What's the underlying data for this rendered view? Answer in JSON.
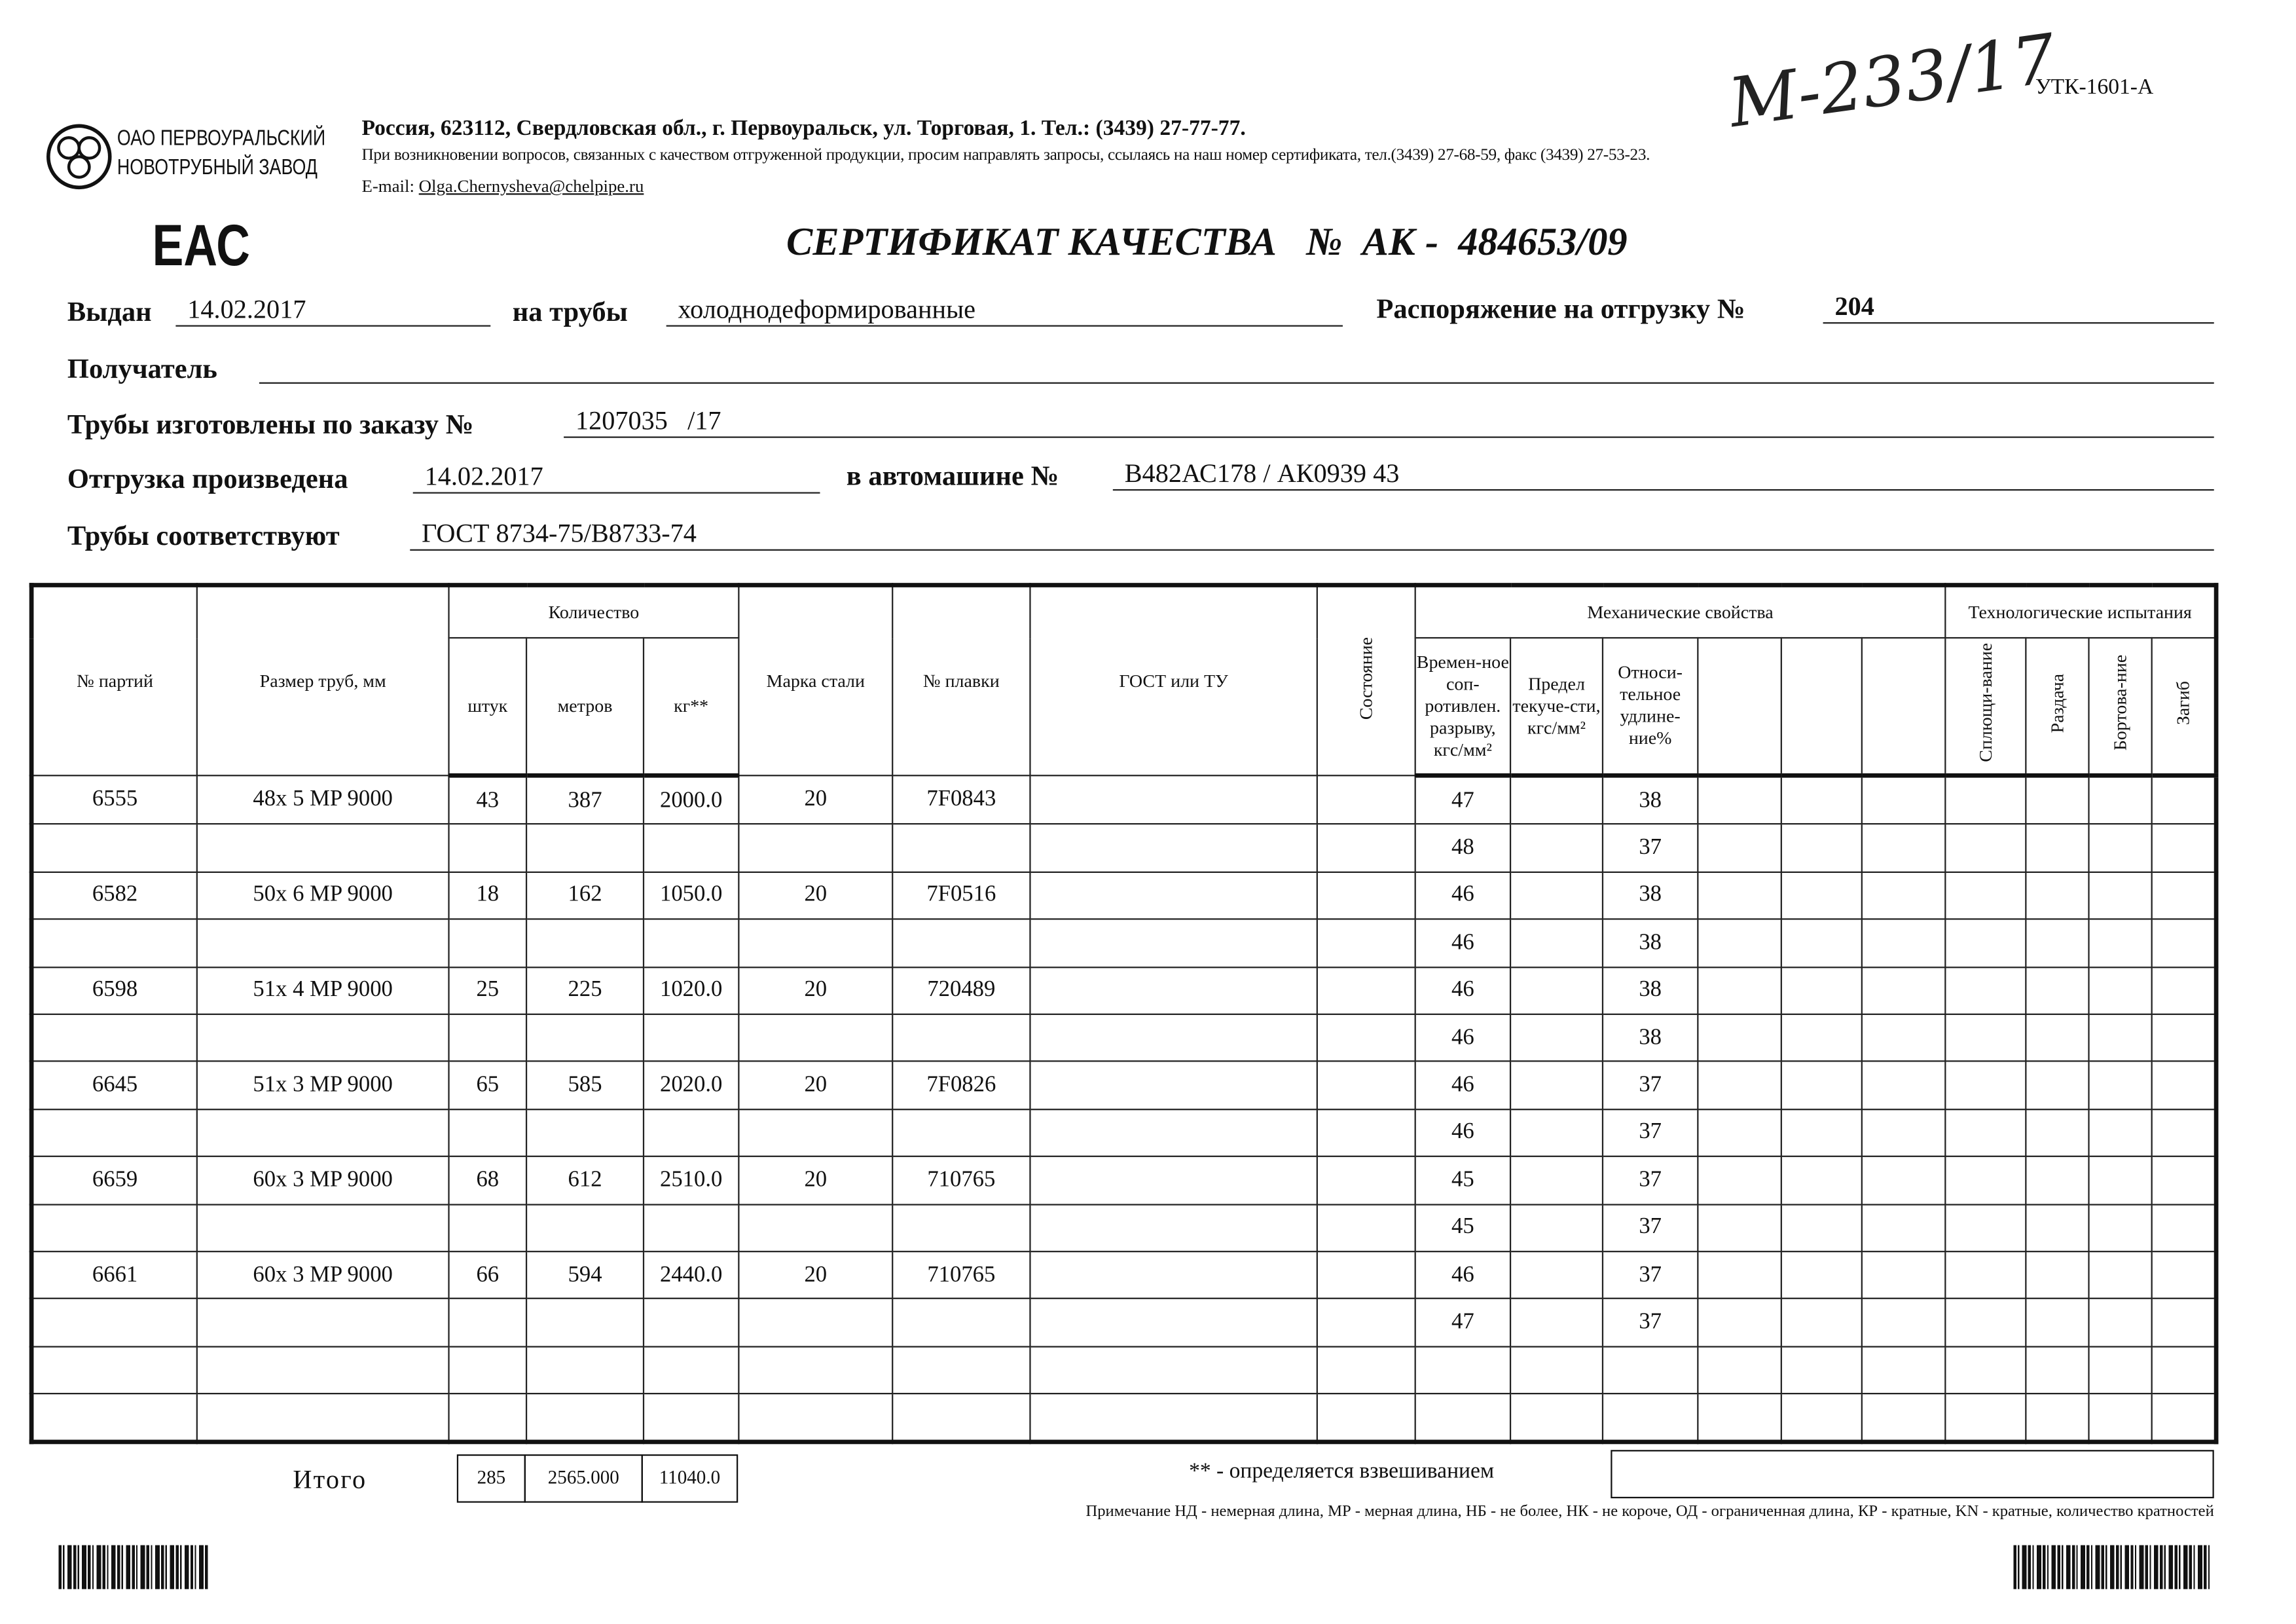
{
  "header": {
    "company_line1": "ОАО ПЕРВОУРАЛЬСКИЙ",
    "company_line2": "НОВОТРУБНЫЙ ЗАВОД",
    "address": "Россия, 623112, Свердловская обл., г. Первоуральск, ул. Торговая, 1. Тел.: (3439) 27-77-77.",
    "contact_note": "При возникновении вопросов, связанных с качеством отгруженной продукции, просим направлять запросы, ссылаясь на наш номер сертификата, тел.(3439) 27-68-59, факс (3439) 27-53-23.",
    "email_label": "E-mail:",
    "email": "Olga.Chernysheva@chelpipe.ru",
    "handwritten_number": "М-233/17",
    "form_code": "УТК-1601-А",
    "eac_mark": "ЕАС"
  },
  "title": "СЕРТИФИКАТ КАЧЕСТВА   №  АК -  484653/09",
  "fields": {
    "issued_label": "Выдан",
    "issued": "14.02.2017",
    "pipes_label": "на трубы",
    "pipes": "холоднодеформированные",
    "order_dispatch_label": "Распоряжение на отгрузку №",
    "order_dispatch": "204",
    "recipient_label": "Получатель",
    "recipient": "",
    "made_by_order_label": "Трубы изготовлены по заказу №",
    "made_by_order": "1207035   /17",
    "shipped_label": "Отгрузка произведена",
    "shipped": "14.02.2017",
    "vehicle_label": "в автомашине №",
    "vehicle": "В482АС178 / АК0939 43",
    "conform_label": "Трубы соответствуют",
    "conform": "ГОСТ 8734-75/В8733-74"
  },
  "table": {
    "headers": {
      "batch": "№ партий",
      "size": "Размер труб, мм",
      "quantity": "Количество",
      "pcs": "штук",
      "meters": "метров",
      "kg": "кг**",
      "steel": "Марка стали",
      "heat": "№ плавки",
      "gost": "ГОСТ или ТУ",
      "condition": "Состояние",
      "mech": "Механические свойства",
      "tensile": "Времен-ное соп-ротивлен. разрыву, кгс/мм²",
      "yield": "Предел текуче-сти, кгс/мм²",
      "elong": "Относи-тельное удлине-ние%",
      "tech": "Технологические испытания",
      "flatten": "Сплющи-вание",
      "expand": "Раздача",
      "flange": "Бортова-ние",
      "bend": "Загиб"
    },
    "rows": [
      {
        "batch": "6555",
        "size": "48x 5 MP 9000",
        "pcs": "43",
        "meters": "387",
        "kg": "2000.0",
        "steel": "20",
        "heat": "7F0843",
        "tensile": "47",
        "elong": "38"
      },
      {
        "batch": "",
        "size": "",
        "pcs": "",
        "meters": "",
        "kg": "",
        "steel": "",
        "heat": "",
        "tensile": "48",
        "elong": "37"
      },
      {
        "batch": "6582",
        "size": "50x 6 MP 9000",
        "pcs": "18",
        "meters": "162",
        "kg": "1050.0",
        "steel": "20",
        "heat": "7F0516",
        "tensile": "46",
        "elong": "38"
      },
      {
        "batch": "",
        "size": "",
        "pcs": "",
        "meters": "",
        "kg": "",
        "steel": "",
        "heat": "",
        "tensile": "46",
        "elong": "38"
      },
      {
        "batch": "6598",
        "size": "51x 4 MP 9000",
        "pcs": "25",
        "meters": "225",
        "kg": "1020.0",
        "steel": "20",
        "heat": "720489",
        "tensile": "46",
        "elong": "38"
      },
      {
        "batch": "",
        "size": "",
        "pcs": "",
        "meters": "",
        "kg": "",
        "steel": "",
        "heat": "",
        "tensile": "46",
        "elong": "38"
      },
      {
        "batch": "6645",
        "size": "51x 3 MP 9000",
        "pcs": "65",
        "meters": "585",
        "kg": "2020.0",
        "steel": "20",
        "heat": "7F0826",
        "tensile": "46",
        "elong": "37"
      },
      {
        "batch": "",
        "size": "",
        "pcs": "",
        "meters": "",
        "kg": "",
        "steel": "",
        "heat": "",
        "tensile": "46",
        "elong": "37"
      },
      {
        "batch": "6659",
        "size": "60x 3 MP 9000",
        "pcs": "68",
        "meters": "612",
        "kg": "2510.0",
        "steel": "20",
        "heat": "710765",
        "tensile": "45",
        "elong": "37"
      },
      {
        "batch": "",
        "size": "",
        "pcs": "",
        "meters": "",
        "kg": "",
        "steel": "",
        "heat": "",
        "tensile": "45",
        "elong": "37"
      },
      {
        "batch": "6661",
        "size": "60x 3 MP 9000",
        "pcs": "66",
        "meters": "594",
        "kg": "2440.0",
        "steel": "20",
        "heat": "710765",
        "tensile": "46",
        "elong": "37"
      },
      {
        "batch": "",
        "size": "",
        "pcs": "",
        "meters": "",
        "kg": "",
        "steel": "",
        "heat": "",
        "tensile": "47",
        "elong": "37"
      },
      {
        "batch": "",
        "size": "",
        "pcs": "",
        "meters": "",
        "kg": "",
        "steel": "",
        "heat": "",
        "tensile": "",
        "elong": ""
      },
      {
        "batch": "",
        "size": "",
        "pcs": "",
        "meters": "",
        "kg": "",
        "steel": "",
        "heat": "",
        "tensile": "",
        "elong": ""
      }
    ]
  },
  "totals": {
    "label": "Итого",
    "pcs": "285",
    "meters": "2565.000",
    "kg": "11040.0"
  },
  "footnote": "** - определяется взвешиванием",
  "note": "Примечание  НД - немерная длина, МР - мерная длина, НБ - не более, НК - не короче, ОД - ограниченная длина, КР - кратные, KN - кратные, количество кратностей"
}
